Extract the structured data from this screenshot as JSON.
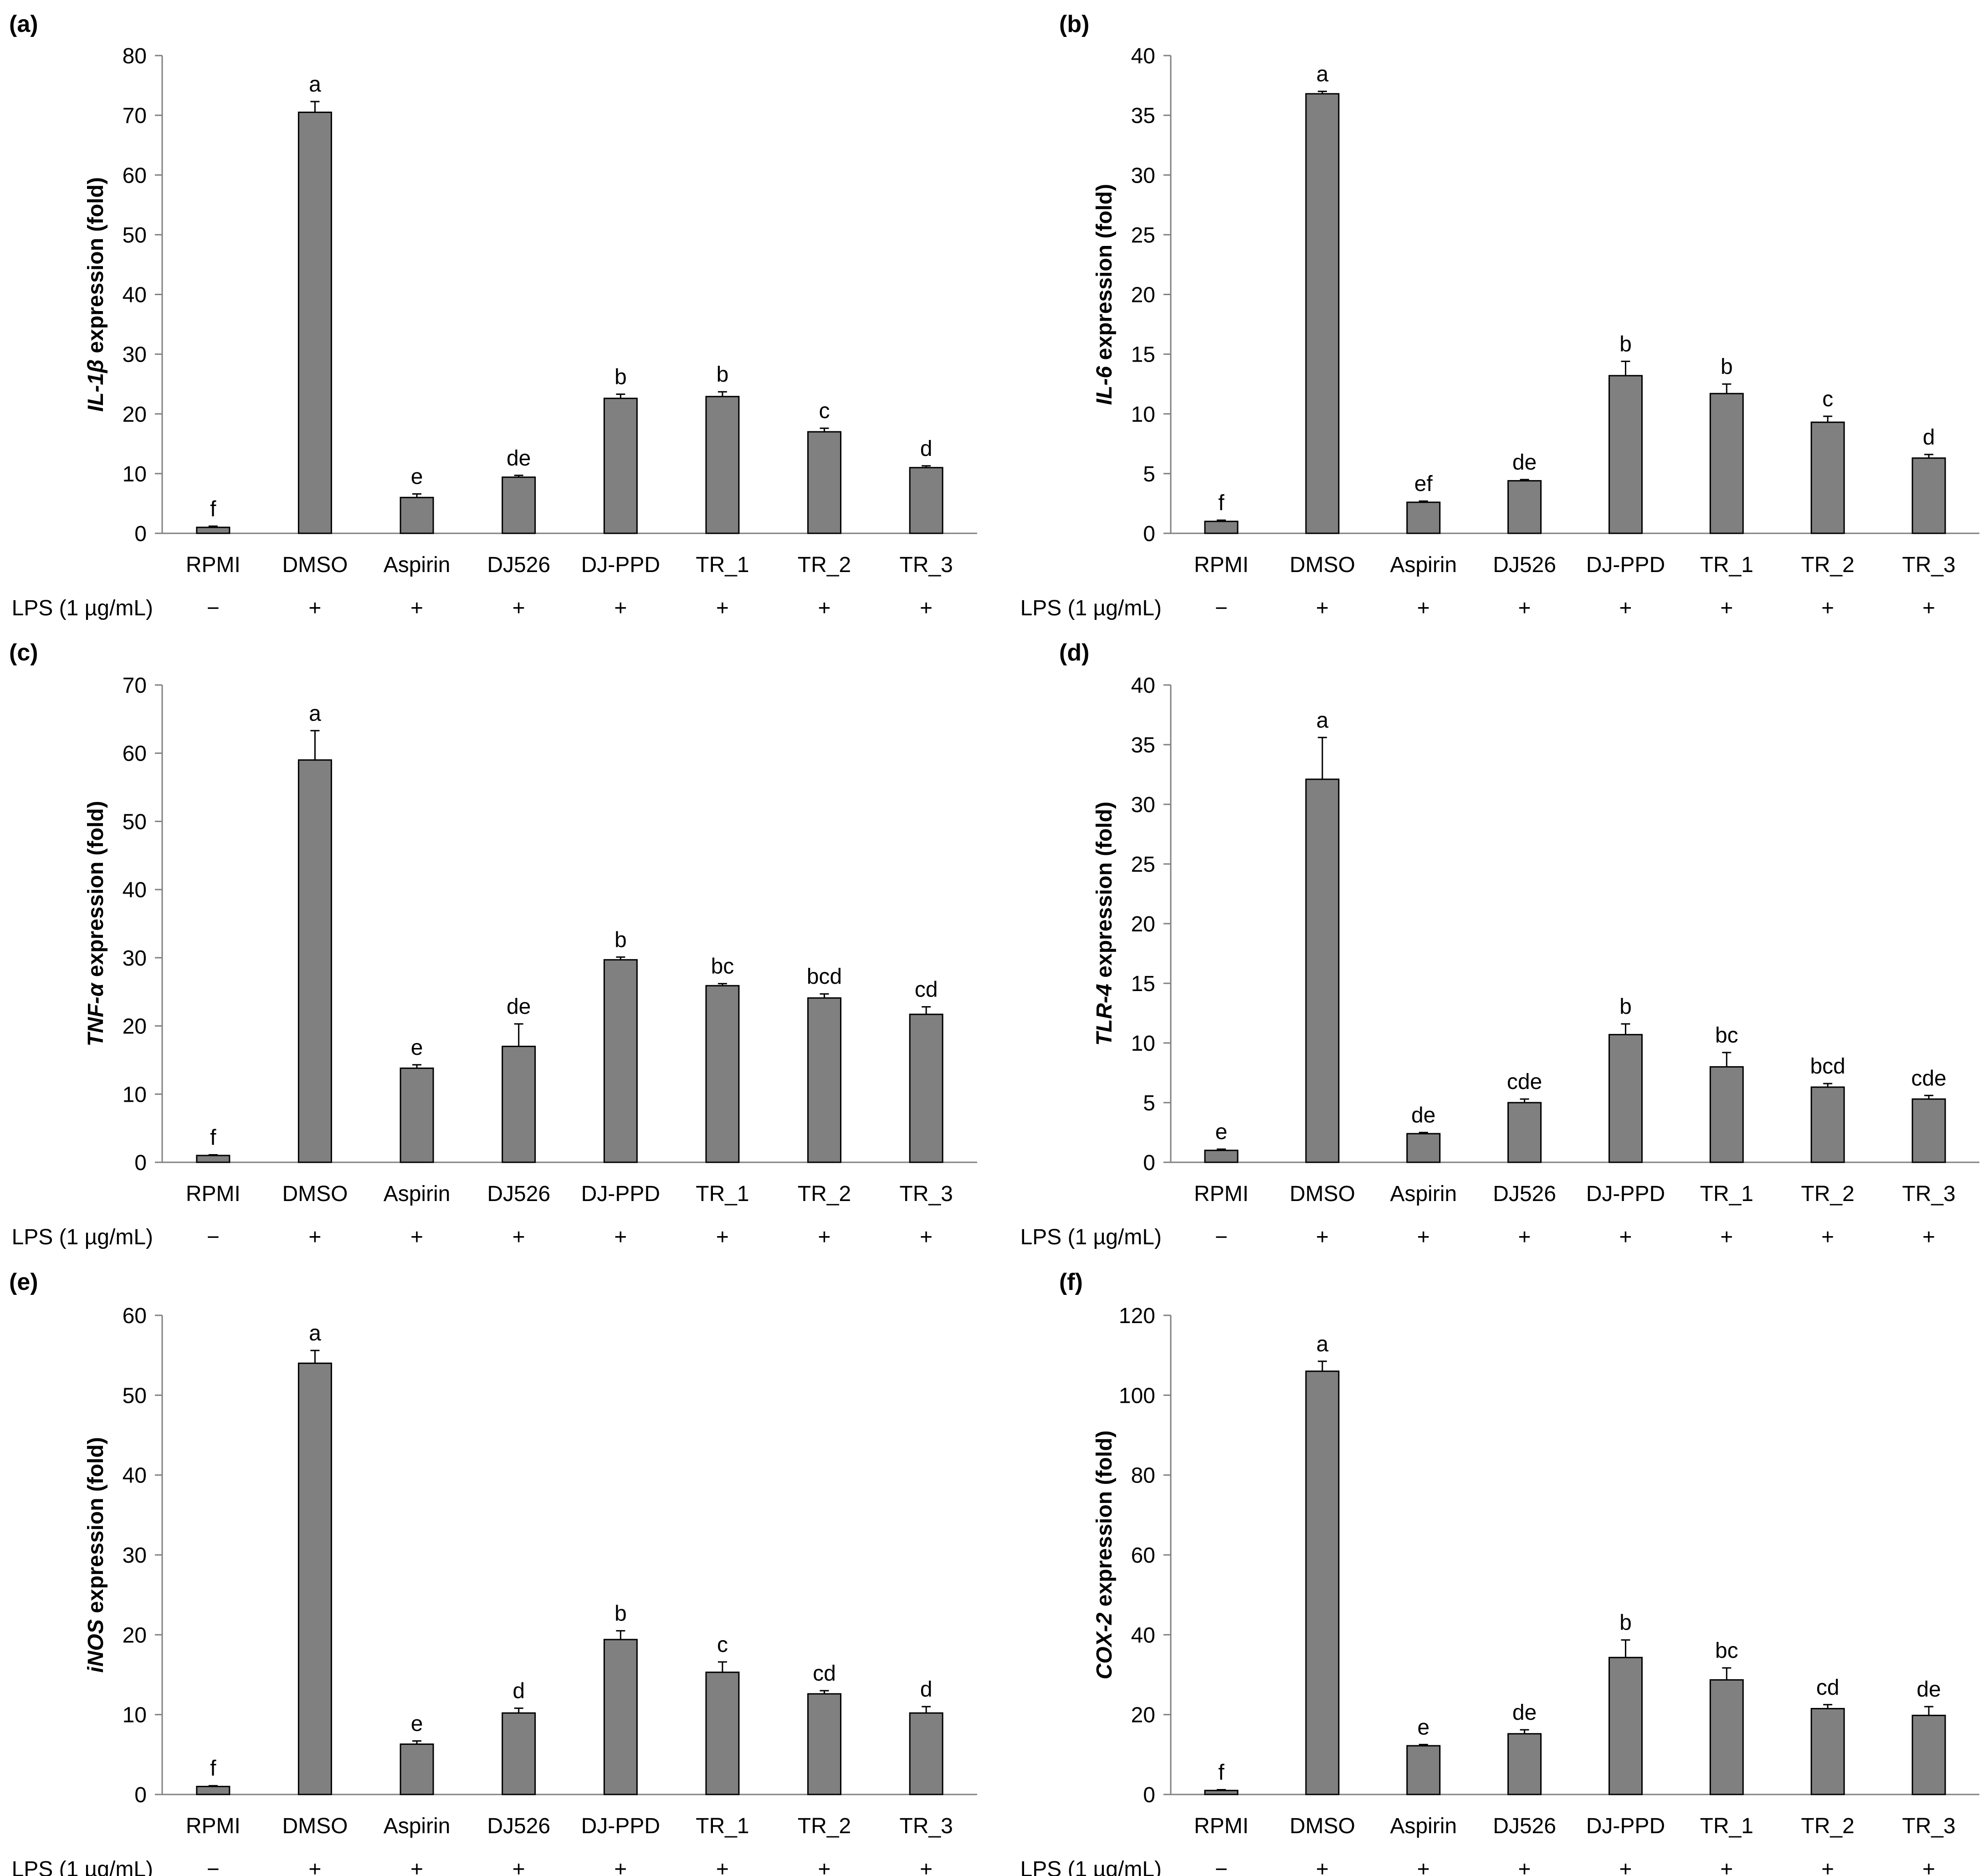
{
  "figure": {
    "lps_label": "LPS (1 µg/mL)",
    "bar_color": "#808080"
  },
  "chart_data": [
    {
      "type": "bar",
      "panel": "(a)",
      "ylabel_gene": "IL-1β",
      "ylabel_rest": " expression (fold)",
      "ylim": [
        0,
        80
      ],
      "yticks": [
        0,
        10,
        20,
        30,
        40,
        50,
        60,
        70,
        80
      ],
      "categories": [
        "RPMI",
        "DMSO",
        "Aspirin",
        "DJ526",
        "DJ-PPD",
        "TR_1",
        "TR_2",
        "TR_3"
      ],
      "values": [
        1.0,
        70.5,
        6.0,
        9.4,
        22.6,
        22.9,
        17.0,
        11.0
      ],
      "errors": [
        0.2,
        1.8,
        0.6,
        0.3,
        0.7,
        0.8,
        0.6,
        0.3
      ],
      "significance": [
        "f",
        "a",
        "e",
        "de",
        "b",
        "b",
        "c",
        "d"
      ],
      "lps": [
        "−",
        "+",
        "+",
        "+",
        "+",
        "+",
        "+",
        "+"
      ]
    },
    {
      "type": "bar",
      "panel": "(b)",
      "ylabel_gene": "IL-6",
      "ylabel_rest": " expression (fold)",
      "ylim": [
        0,
        40
      ],
      "yticks": [
        0,
        5,
        10,
        15,
        20,
        25,
        30,
        35,
        40
      ],
      "categories": [
        "RPMI",
        "DMSO",
        "Aspirin",
        "DJ526",
        "DJ-PPD",
        "TR_1",
        "TR_2",
        "TR_3"
      ],
      "values": [
        1.0,
        36.8,
        2.6,
        4.4,
        13.2,
        11.7,
        9.3,
        6.3
      ],
      "errors": [
        0.1,
        0.2,
        0.1,
        0.1,
        1.2,
        0.8,
        0.5,
        0.3
      ],
      "significance": [
        "f",
        "a",
        "ef",
        "de",
        "b",
        "b",
        "c",
        "d"
      ],
      "lps": [
        "−",
        "+",
        "+",
        "+",
        "+",
        "+",
        "+",
        "+"
      ]
    },
    {
      "type": "bar",
      "panel": "(c)",
      "ylabel_gene": "TNF-α",
      "ylabel_rest": " expression (fold)",
      "ylim": [
        0,
        70
      ],
      "yticks": [
        0,
        10,
        20,
        30,
        40,
        50,
        60,
        70
      ],
      "categories": [
        "RPMI",
        "DMSO",
        "Aspirin",
        "DJ526",
        "DJ-PPD",
        "TR_1",
        "TR_2",
        "TR_3"
      ],
      "values": [
        1.0,
        59.0,
        13.8,
        17.0,
        29.7,
        25.9,
        24.1,
        21.7
      ],
      "errors": [
        0.1,
        4.3,
        0.5,
        3.3,
        0.4,
        0.3,
        0.6,
        1.1
      ],
      "significance": [
        "f",
        "a",
        "e",
        "de",
        "b",
        "bc",
        "bcd",
        "cd"
      ],
      "lps": [
        "−",
        "+",
        "+",
        "+",
        "+",
        "+",
        "+",
        "+"
      ]
    },
    {
      "type": "bar",
      "panel": "(d)",
      "ylabel_gene": "TLR-4",
      "ylabel_rest": " expression (fold)",
      "ylim": [
        0,
        40
      ],
      "yticks": [
        0,
        5,
        10,
        15,
        20,
        25,
        30,
        35,
        40
      ],
      "categories": [
        "RPMI",
        "DMSO",
        "Aspirin",
        "DJ526",
        "DJ-PPD",
        "TR_1",
        "TR_2",
        "TR_3"
      ],
      "values": [
        1.0,
        32.1,
        2.4,
        5.0,
        10.7,
        8.0,
        6.3,
        5.3
      ],
      "errors": [
        0.1,
        3.5,
        0.1,
        0.3,
        0.9,
        1.2,
        0.3,
        0.3
      ],
      "significance": [
        "e",
        "a",
        "de",
        "cde",
        "b",
        "bc",
        "bcd",
        "cde"
      ],
      "lps": [
        "−",
        "+",
        "+",
        "+",
        "+",
        "+",
        "+",
        "+"
      ]
    },
    {
      "type": "bar",
      "panel": "(e)",
      "ylabel_gene": "iNOS",
      "ylabel_rest": " expression (fold)",
      "ylim": [
        0,
        60
      ],
      "yticks": [
        0,
        10,
        20,
        30,
        40,
        50,
        60
      ],
      "categories": [
        "RPMI",
        "DMSO",
        "Aspirin",
        "DJ526",
        "DJ-PPD",
        "TR_1",
        "TR_2",
        "TR_3"
      ],
      "values": [
        1.0,
        54.0,
        6.3,
        10.2,
        19.4,
        15.3,
        12.6,
        10.2
      ],
      "errors": [
        0.1,
        1.6,
        0.4,
        0.6,
        1.1,
        1.3,
        0.4,
        0.8
      ],
      "significance": [
        "f",
        "a",
        "e",
        "d",
        "b",
        "c",
        "cd",
        "d"
      ],
      "lps": [
        "−",
        "+",
        "+",
        "+",
        "+",
        "+",
        "+",
        "+"
      ]
    },
    {
      "type": "bar",
      "panel": "(f)",
      "ylabel_gene": "COX-2",
      "ylabel_rest": " expression (fold)",
      "ylim": [
        0,
        120
      ],
      "yticks": [
        0,
        20,
        40,
        60,
        80,
        100,
        120
      ],
      "categories": [
        "RPMI",
        "DMSO",
        "Aspirin",
        "DJ526",
        "DJ-PPD",
        "TR_1",
        "TR_2",
        "TR_3"
      ],
      "values": [
        1.0,
        106.0,
        12.2,
        15.2,
        34.3,
        28.7,
        21.5,
        19.8
      ],
      "errors": [
        0.2,
        2.5,
        0.3,
        1.0,
        4.4,
        3.0,
        1.0,
        2.2
      ],
      "significance": [
        "f",
        "a",
        "e",
        "de",
        "b",
        "bc",
        "cd",
        "de"
      ],
      "lps": [
        "−",
        "+",
        "+",
        "+",
        "+",
        "+",
        "+",
        "+"
      ]
    }
  ]
}
